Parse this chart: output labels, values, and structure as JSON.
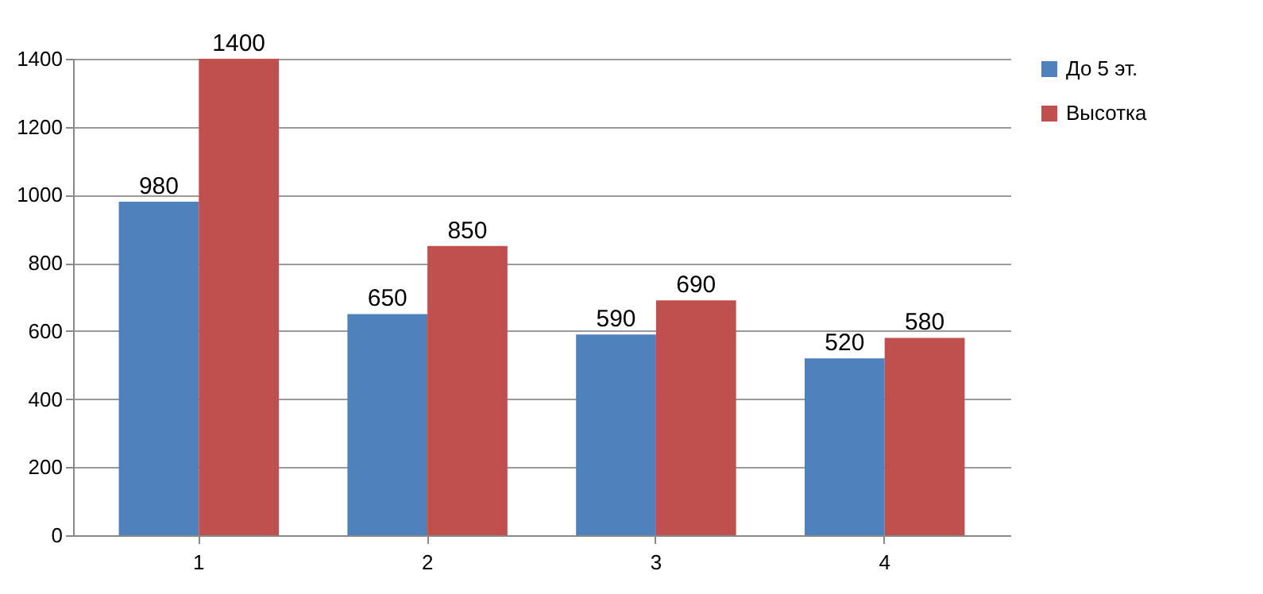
{
  "chart_data": {
    "type": "bar",
    "categories": [
      "1",
      "2",
      "3",
      "4"
    ],
    "series": [
      {
        "name": "До 5 эт.",
        "color": "#4f81bd",
        "values": [
          980,
          650,
          590,
          520
        ]
      },
      {
        "name": "Высотка",
        "color": "#c0504d",
        "values": [
          1400,
          850,
          690,
          580
        ]
      }
    ],
    "ylim": [
      0,
      1400
    ],
    "yticks": [
      0,
      200,
      400,
      600,
      800,
      1000,
      1200,
      1400
    ],
    "grid": "y",
    "legend": "right",
    "data_labels": true
  }
}
